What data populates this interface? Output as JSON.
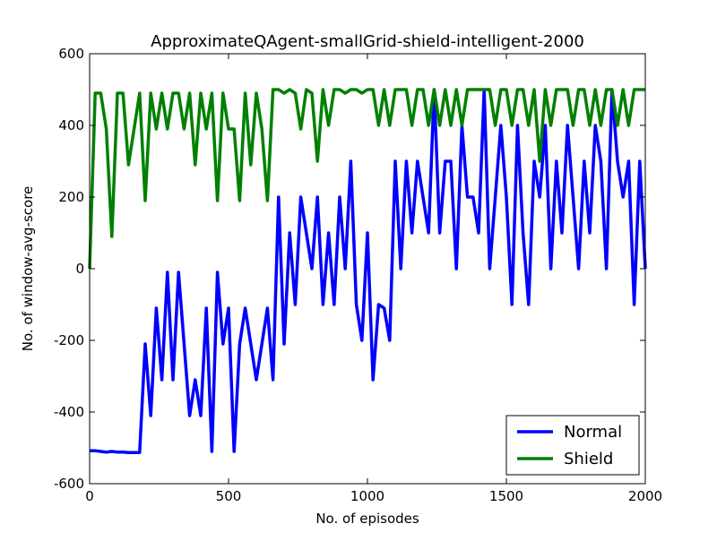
{
  "chart_data": {
    "type": "line",
    "title": "ApproximateQAgent-smallGrid-shield-intelligent-2000",
    "x_label": "No. of episodes",
    "y_label": "No. of window-avg-score",
    "x": [
      0,
      20,
      40,
      60,
      80,
      100,
      120,
      140,
      160,
      180,
      200,
      220,
      240,
      260,
      280,
      300,
      320,
      340,
      360,
      380,
      400,
      420,
      440,
      460,
      480,
      500,
      520,
      540,
      560,
      580,
      600,
      620,
      640,
      660,
      680,
      700,
      720,
      740,
      760,
      780,
      800,
      820,
      840,
      860,
      880,
      900,
      920,
      940,
      960,
      980,
      1000,
      1020,
      1040,
      1060,
      1080,
      1100,
      1120,
      1140,
      1160,
      1180,
      1200,
      1220,
      1240,
      1260,
      1280,
      1300,
      1320,
      1340,
      1360,
      1380,
      1400,
      1420,
      1440,
      1460,
      1480,
      1500,
      1520,
      1540,
      1560,
      1580,
      1600,
      1620,
      1640,
      1660,
      1680,
      1700,
      1720,
      1740,
      1760,
      1780,
      1800,
      1820,
      1840,
      1860,
      1880,
      1900,
      1920,
      1940,
      1960,
      1980,
      2000
    ],
    "series": [
      {
        "name": "Normal",
        "color": "#0000ff",
        "values": [
          -508,
          -508,
          -510,
          -512,
          -510,
          -512,
          -512,
          -513,
          -513,
          -513,
          -210,
          -410,
          -110,
          -310,
          -10,
          -310,
          -10,
          -210,
          -410,
          -310,
          -410,
          -110,
          -510,
          -10,
          -210,
          -110,
          -510,
          -210,
          -110,
          -210,
          -310,
          -210,
          -110,
          -310,
          200,
          -210,
          100,
          -100,
          200,
          100,
          0,
          200,
          -100,
          100,
          -100,
          200,
          0,
          300,
          -100,
          -200,
          100,
          -310,
          -100,
          -110,
          -200,
          300,
          0,
          300,
          100,
          300,
          200,
          100,
          500,
          100,
          300,
          300,
          0,
          400,
          200,
          200,
          100,
          500,
          0,
          200,
          400,
          200,
          -100,
          400,
          100,
          -100,
          300,
          200,
          400,
          0,
          300,
          100,
          400,
          200,
          0,
          300,
          100,
          400,
          300,
          0,
          500,
          300,
          200,
          300,
          -100,
          300,
          0
        ]
      },
      {
        "name": "Shield",
        "color": "#008000",
        "values": [
          0,
          490,
          490,
          390,
          90,
          490,
          490,
          290,
          390,
          490,
          190,
          490,
          390,
          490,
          390,
          490,
          490,
          390,
          490,
          290,
          490,
          390,
          490,
          190,
          490,
          390,
          390,
          190,
          490,
          290,
          490,
          390,
          190,
          500,
          500,
          490,
          500,
          490,
          390,
          500,
          490,
          300,
          500,
          400,
          500,
          500,
          490,
          500,
          500,
          490,
          500,
          500,
          400,
          500,
          400,
          500,
          500,
          500,
          400,
          500,
          500,
          400,
          500,
          400,
          500,
          400,
          500,
          400,
          500,
          500,
          500,
          500,
          500,
          400,
          500,
          500,
          400,
          500,
          500,
          400,
          500,
          300,
          500,
          400,
          500,
          500,
          500,
          400,
          500,
          500,
          400,
          500,
          400,
          500,
          500,
          400,
          500,
          400,
          500,
          500,
          500
        ]
      }
    ],
    "xlim": [
      0,
      2000
    ],
    "xticks": [
      0,
      500,
      1000,
      1500,
      2000
    ],
    "ylim": [
      -600,
      600
    ],
    "yticks": [
      -600,
      -400,
      -200,
      0,
      200,
      400,
      600
    ],
    "legend": "lower right"
  }
}
